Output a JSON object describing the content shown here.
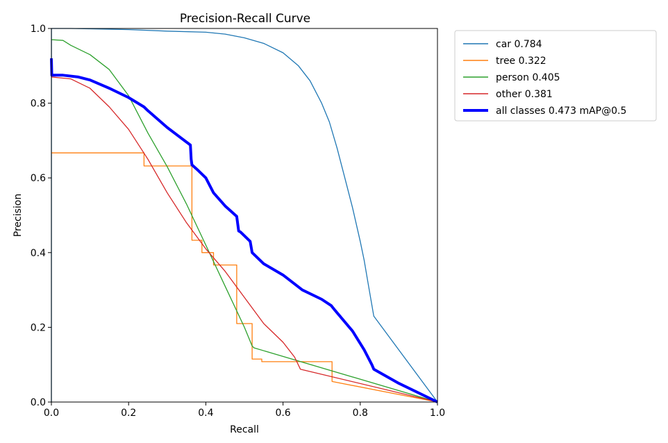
{
  "chart_data": {
    "type": "line",
    "title": "Precision-Recall Curve",
    "xlabel": "Recall",
    "ylabel": "Precision",
    "xlim": [
      0,
      1
    ],
    "ylim": [
      0,
      1
    ],
    "xticks": [
      "0.0",
      "0.2",
      "0.4",
      "0.6",
      "0.8",
      "1.0"
    ],
    "yticks": [
      "0.0",
      "0.2",
      "0.4",
      "0.6",
      "0.8",
      "1.0"
    ],
    "grid": false,
    "legend_position": "outside-top-right",
    "series": [
      {
        "name": "car 0.784",
        "color": "#1f77b4",
        "x": [
          0,
          0.0001,
          0.05,
          0.1,
          0.2,
          0.3,
          0.4,
          0.45,
          0.5,
          0.55,
          0.6,
          0.64,
          0.67,
          0.7,
          0.72,
          0.74,
          0.76,
          0.78,
          0.8,
          0.81,
          0.82,
          0.83,
          0.835,
          1.0
        ],
        "y": [
          0.0,
          1.0,
          1.0,
          0.999,
          0.997,
          0.993,
          0.99,
          0.985,
          0.975,
          0.96,
          0.935,
          0.9,
          0.86,
          0.8,
          0.75,
          0.68,
          0.6,
          0.52,
          0.43,
          0.38,
          0.32,
          0.26,
          0.23,
          0.0
        ]
      },
      {
        "name": "tree 0.322",
        "color": "#ff7f0e",
        "x": [
          0,
          0.24,
          0.24,
          0.364,
          0.364,
          0.39,
          0.39,
          0.42,
          0.42,
          0.48,
          0.48,
          0.48,
          0.48,
          0.52,
          0.52,
          0.545,
          0.545,
          0.727,
          0.727,
          1.0
        ],
        "y": [
          0.667,
          0.667,
          0.632,
          0.632,
          0.433,
          0.433,
          0.4,
          0.4,
          0.367,
          0.367,
          0.364,
          0.364,
          0.21,
          0.21,
          0.115,
          0.115,
          0.108,
          0.108,
          0.055,
          0.0
        ]
      },
      {
        "name": "person 0.405",
        "color": "#2ca02c",
        "x": [
          0,
          0.03,
          0.05,
          0.1,
          0.15,
          0.2,
          0.25,
          0.3,
          0.35,
          0.4,
          0.45,
          0.5,
          0.52,
          0.525,
          1.0
        ],
        "y": [
          0.97,
          0.968,
          0.955,
          0.93,
          0.89,
          0.82,
          0.72,
          0.63,
          0.53,
          0.42,
          0.31,
          0.2,
          0.15,
          0.145,
          0.0
        ]
      },
      {
        "name": "other 0.381",
        "color": "#d62728",
        "x": [
          0,
          0.05,
          0.1,
          0.15,
          0.2,
          0.25,
          0.3,
          0.35,
          0.4,
          0.45,
          0.5,
          0.55,
          0.6,
          0.63,
          0.645,
          1.0
        ],
        "y": [
          0.87,
          0.865,
          0.84,
          0.79,
          0.73,
          0.65,
          0.56,
          0.48,
          0.41,
          0.35,
          0.28,
          0.21,
          0.16,
          0.12,
          0.088,
          0.0
        ]
      },
      {
        "name": "all classes 0.473 mAP@0.5",
        "color": "#0000ff",
        "bold": true,
        "x": [
          0,
          0.001,
          0.03,
          0.07,
          0.1,
          0.15,
          0.2,
          0.24,
          0.25,
          0.3,
          0.36,
          0.362,
          0.364,
          0.38,
          0.4,
          0.42,
          0.45,
          0.48,
          0.485,
          0.49,
          0.515,
          0.52,
          0.55,
          0.6,
          0.65,
          0.7,
          0.725,
          0.735,
          0.78,
          0.81,
          0.83,
          0.835,
          0.9,
          1.0
        ],
        "y": [
          0.92,
          0.875,
          0.875,
          0.87,
          0.862,
          0.84,
          0.815,
          0.79,
          0.78,
          0.735,
          0.688,
          0.65,
          0.635,
          0.62,
          0.6,
          0.56,
          0.525,
          0.497,
          0.458,
          0.455,
          0.43,
          0.4,
          0.37,
          0.34,
          0.3,
          0.275,
          0.258,
          0.245,
          0.19,
          0.14,
          0.1,
          0.088,
          0.05,
          0.0
        ]
      }
    ]
  }
}
